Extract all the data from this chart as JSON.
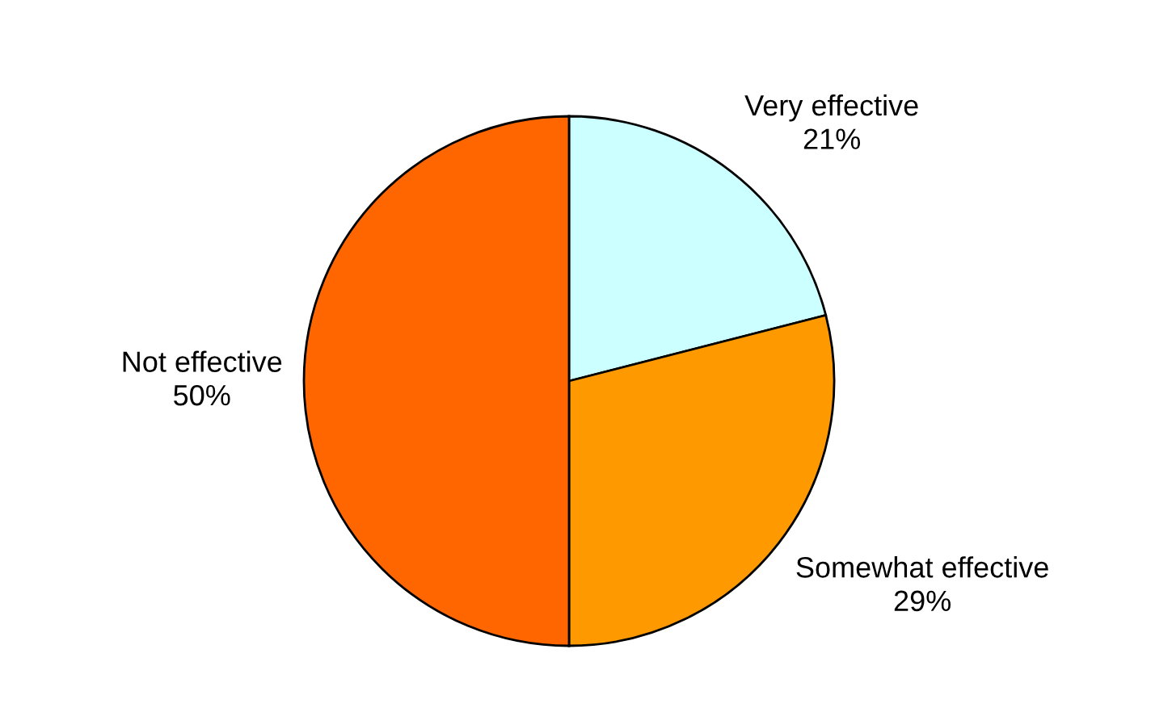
{
  "chart_data": {
    "type": "pie",
    "categories": [
      "Very effective",
      "Somewhat effective",
      "Not effective"
    ],
    "values": [
      21,
      29,
      50
    ],
    "value_labels": [
      "21%",
      "29%",
      "50%"
    ],
    "colors": [
      "#ccffff",
      "#ff9900",
      "#ff6600"
    ],
    "legend": false
  }
}
